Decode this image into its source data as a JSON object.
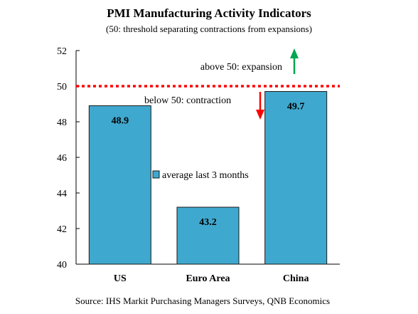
{
  "chart_data": {
    "type": "bar",
    "title": "PMI Manufacturing Activity Indicators",
    "subtitle": "(50: threshold separating contractions from expansions)",
    "categories": [
      "US",
      "Euro Area",
      "China"
    ],
    "series": [
      {
        "name": "average last 3 months",
        "values": [
          48.9,
          43.2,
          49.7
        ]
      }
    ],
    "data_labels": [
      "48.9",
      "43.2",
      "49.7"
    ],
    "ylim": [
      40,
      52
    ],
    "yticks": [
      "40",
      "42",
      "44",
      "46",
      "48",
      "50",
      "52"
    ],
    "xlabel": "",
    "ylabel": "",
    "grid": false,
    "legend_position": "center",
    "threshold": {
      "value": 50,
      "above_label": "above 50: expansion",
      "below_label": "below 50: contraction"
    },
    "source": "Source: IHS Markit Purchasing Managers Surveys, QNB Economics"
  },
  "colors": {
    "bar_fill": "#3fa8cf",
    "bar_stroke": "#1a1a1a",
    "threshold_line": "#ff0000",
    "arrow_up": "#00a651",
    "arrow_down": "#ff0000",
    "axis": "#000000",
    "text": "#000000"
  }
}
